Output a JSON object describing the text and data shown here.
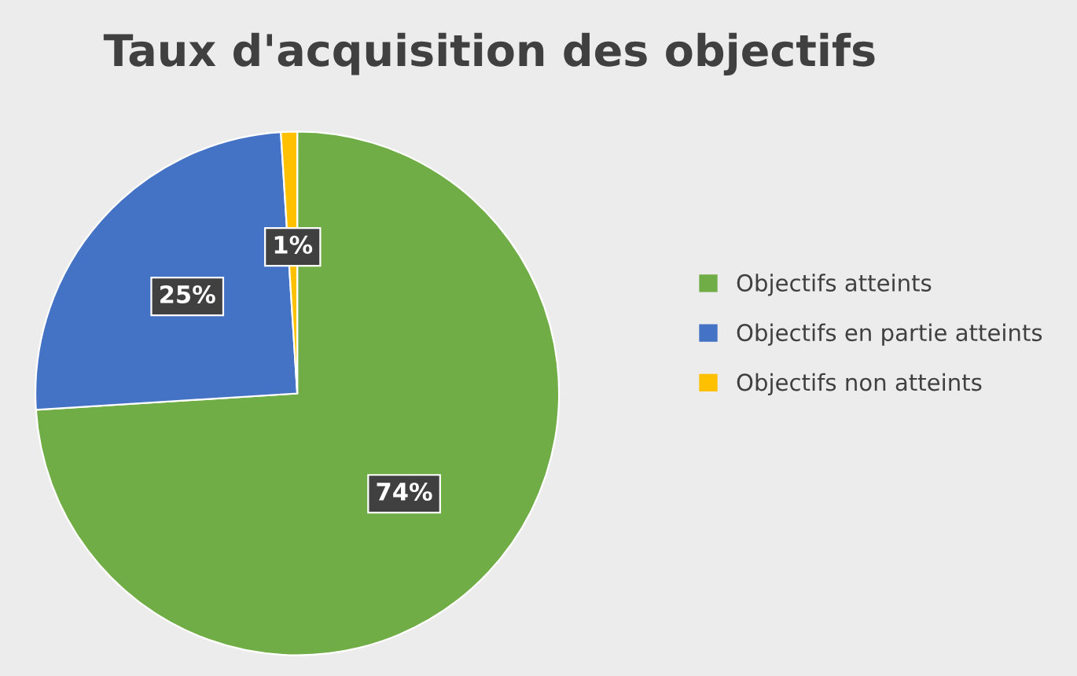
{
  "chart_data": {
    "type": "pie",
    "title": "Taux d'acquisition des objectifs",
    "categories": [
      "Objectifs atteints",
      "Objectifs en partie atteints",
      "Objectifs non atteints"
    ],
    "values": [
      74,
      25,
      1
    ],
    "colors": [
      "#70ad47",
      "#4472c4",
      "#ffc000"
    ],
    "value_labels": [
      "74%",
      "25%",
      "1%"
    ],
    "legend": "right"
  }
}
